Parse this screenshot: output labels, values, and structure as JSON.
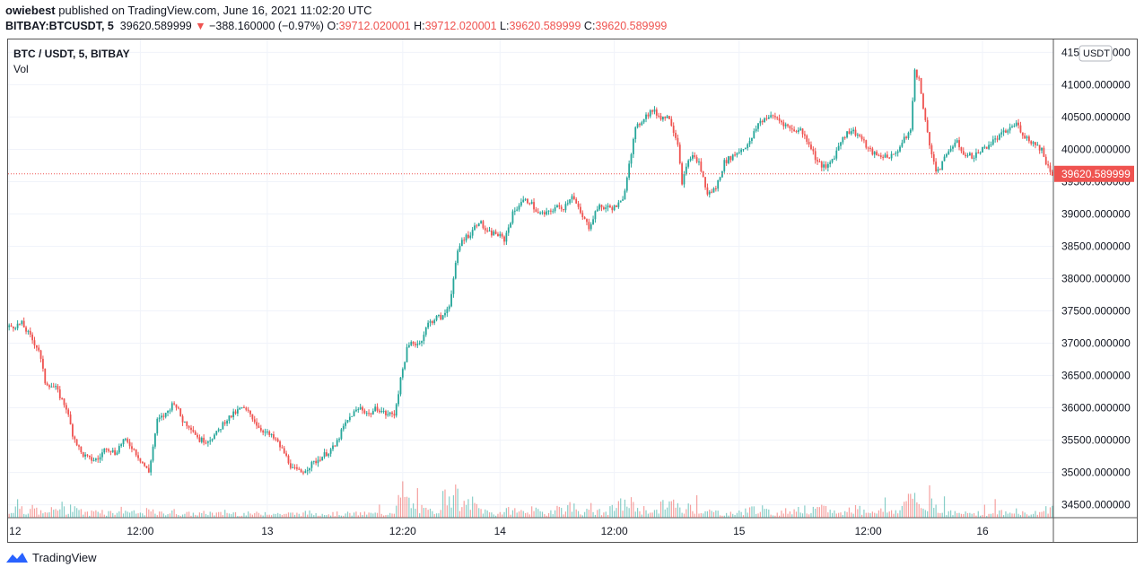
{
  "header": {
    "author": "owiebest",
    "published_text": " published on TradingView.com, June 16, 2021 11:02:20 UTC",
    "symbol": "BITBAY:BTCUSDT, 5",
    "last_price": "39620.589999",
    "change_arrow": "▼",
    "change_text": "−388.160000 (−0.97%)",
    "o_label": "O:",
    "o_value": "39712.020001",
    "h_label": "H:",
    "h_value": "39712.020001",
    "l_label": "L:",
    "l_value": "39620.589999",
    "c_label": "C:",
    "c_value": "39620.589999"
  },
  "legend": {
    "pair": "BTC / USDT, 5, BITBAY",
    "volume_label": "Vol"
  },
  "footer": {
    "brand": "TradingView"
  },
  "colors": {
    "up": "#26a69a",
    "down": "#ef5350",
    "grid": "#f0f3fa",
    "axis_text": "#131722",
    "price_tag": "#ef5350"
  },
  "chart_data": {
    "type": "candlestick",
    "currency_label": "USDT",
    "ylim": [
      34300,
      41700
    ],
    "y_ticks": [
      "41500.000000",
      "41000.000000",
      "40500.000000",
      "40000.000000",
      "39500.000000",
      "39000.000000",
      "38500.000000",
      "38000.000000",
      "37500.000000",
      "37000.000000",
      "36500.000000",
      "36000.000000",
      "35500.000000",
      "35000.000000",
      "34500.000000"
    ],
    "x_ticks": [
      "12",
      "12:00",
      "13",
      "12:20",
      "14",
      "12:00",
      "15",
      "12:00",
      "16"
    ],
    "current_price": 39620.589999,
    "current_price_label": "39620.589999",
    "price_path": [
      [
        0,
        37250
      ],
      [
        6,
        37300
      ],
      [
        10,
        37100
      ],
      [
        14,
        36900
      ],
      [
        17,
        36400
      ],
      [
        22,
        36300
      ],
      [
        27,
        36000
      ],
      [
        30,
        35600
      ],
      [
        34,
        35300
      ],
      [
        38,
        35200
      ],
      [
        42,
        35200
      ],
      [
        46,
        35400
      ],
      [
        50,
        35300
      ],
      [
        54,
        35500
      ],
      [
        58,
        35400
      ],
      [
        62,
        35200
      ],
      [
        66,
        35000
      ],
      [
        70,
        35800
      ],
      [
        74,
        35900
      ],
      [
        78,
        36100
      ],
      [
        82,
        35800
      ],
      [
        86,
        35700
      ],
      [
        90,
        35500
      ],
      [
        94,
        35500
      ],
      [
        98,
        35600
      ],
      [
        102,
        35800
      ],
      [
        106,
        35900
      ],
      [
        110,
        36000
      ],
      [
        114,
        35900
      ],
      [
        118,
        35700
      ],
      [
        122,
        35600
      ],
      [
        126,
        35500
      ],
      [
        130,
        35300
      ],
      [
        134,
        35050
      ],
      [
        138,
        35000
      ],
      [
        142,
        35100
      ],
      [
        146,
        35200
      ],
      [
        150,
        35300
      ],
      [
        154,
        35400
      ],
      [
        158,
        35700
      ],
      [
        162,
        35900
      ],
      [
        166,
        36000
      ],
      [
        170,
        35900
      ],
      [
        174,
        36000
      ],
      [
        178,
        35900
      ],
      [
        182,
        35900
      ],
      [
        186,
        36600
      ],
      [
        188,
        36900
      ],
      [
        190,
        37000
      ],
      [
        194,
        37000
      ],
      [
        198,
        37300
      ],
      [
        202,
        37400
      ],
      [
        205,
        37400
      ],
      [
        208,
        37600
      ],
      [
        212,
        38400
      ],
      [
        214,
        38600
      ],
      [
        218,
        38700
      ],
      [
        222,
        38900
      ],
      [
        226,
        38700
      ],
      [
        230,
        38700
      ],
      [
        234,
        38600
      ],
      [
        238,
        39000
      ],
      [
        242,
        39200
      ],
      [
        246,
        39200
      ],
      [
        250,
        39000
      ],
      [
        254,
        39000
      ],
      [
        258,
        39100
      ],
      [
        262,
        39100
      ],
      [
        266,
        39300
      ],
      [
        270,
        39000
      ],
      [
        274,
        38800
      ],
      [
        278,
        39100
      ],
      [
        282,
        39100
      ],
      [
        286,
        39100
      ],
      [
        290,
        39200
      ],
      [
        293,
        39800
      ],
      [
        296,
        40300
      ],
      [
        300,
        40500
      ],
      [
        304,
        40600
      ],
      [
        308,
        40500
      ],
      [
        312,
        40500
      ],
      [
        316,
        40100
      ],
      [
        318,
        39500
      ],
      [
        322,
        39900
      ],
      [
        326,
        39800
      ],
      [
        330,
        39300
      ],
      [
        334,
        39400
      ],
      [
        338,
        39800
      ],
      [
        342,
        39900
      ],
      [
        346,
        40000
      ],
      [
        350,
        40100
      ],
      [
        354,
        40400
      ],
      [
        358,
        40500
      ],
      [
        362,
        40500
      ],
      [
        366,
        40400
      ],
      [
        370,
        40300
      ],
      [
        374,
        40300
      ],
      [
        378,
        40100
      ],
      [
        382,
        39800
      ],
      [
        386,
        39700
      ],
      [
        390,
        39900
      ],
      [
        394,
        40200
      ],
      [
        398,
        40300
      ],
      [
        402,
        40200
      ],
      [
        406,
        40000
      ],
      [
        410,
        39900
      ],
      [
        414,
        39900
      ],
      [
        418,
        39900
      ],
      [
        422,
        40100
      ],
      [
        426,
        40300
      ],
      [
        428,
        41200
      ],
      [
        430,
        41100
      ],
      [
        432,
        40600
      ],
      [
        434,
        40300
      ],
      [
        436,
        39900
      ],
      [
        438,
        39700
      ],
      [
        440,
        39700
      ],
      [
        444,
        40000
      ],
      [
        448,
        40100
      ],
      [
        452,
        39900
      ],
      [
        456,
        39900
      ],
      [
        460,
        40000
      ],
      [
        464,
        40100
      ],
      [
        468,
        40200
      ],
      [
        472,
        40300
      ],
      [
        476,
        40400
      ],
      [
        480,
        40200
      ],
      [
        484,
        40100
      ],
      [
        488,
        40000
      ],
      [
        490,
        39800
      ],
      [
        493,
        39620
      ]
    ],
    "volume_path": [
      [
        0,
        40
      ],
      [
        4,
        160
      ],
      [
        8,
        60
      ],
      [
        12,
        90
      ],
      [
        16,
        40
      ],
      [
        20,
        70
      ],
      [
        24,
        120
      ],
      [
        28,
        60
      ],
      [
        30,
        150
      ],
      [
        34,
        60
      ],
      [
        38,
        40
      ],
      [
        42,
        90
      ],
      [
        46,
        50
      ],
      [
        50,
        60
      ],
      [
        54,
        80
      ],
      [
        58,
        50
      ],
      [
        62,
        40
      ],
      [
        66,
        70
      ],
      [
        70,
        40
      ],
      [
        74,
        50
      ],
      [
        78,
        60
      ],
      [
        82,
        40
      ],
      [
        86,
        40
      ],
      [
        90,
        40
      ],
      [
        94,
        50
      ],
      [
        98,
        40
      ],
      [
        102,
        40
      ],
      [
        106,
        50
      ],
      [
        110,
        40
      ],
      [
        114,
        40
      ],
      [
        118,
        40
      ],
      [
        122,
        60
      ],
      [
        126,
        40
      ],
      [
        130,
        40
      ],
      [
        134,
        40
      ],
      [
        138,
        40
      ],
      [
        142,
        50
      ],
      [
        146,
        40
      ],
      [
        150,
        40
      ],
      [
        154,
        40
      ],
      [
        158,
        40
      ],
      [
        162,
        40
      ],
      [
        166,
        40
      ],
      [
        170,
        40
      ],
      [
        174,
        40
      ],
      [
        178,
        40
      ],
      [
        182,
        80
      ],
      [
        186,
        250
      ],
      [
        190,
        120
      ],
      [
        194,
        90
      ],
      [
        198,
        60
      ],
      [
        202,
        80
      ],
      [
        206,
        220
      ],
      [
        210,
        280
      ],
      [
        214,
        100
      ],
      [
        218,
        160
      ],
      [
        222,
        90
      ],
      [
        226,
        60
      ],
      [
        230,
        40
      ],
      [
        234,
        60
      ],
      [
        238,
        80
      ],
      [
        242,
        60
      ],
      [
        246,
        80
      ],
      [
        250,
        60
      ],
      [
        254,
        40
      ],
      [
        258,
        110
      ],
      [
        262,
        80
      ],
      [
        266,
        120
      ],
      [
        270,
        60
      ],
      [
        274,
        60
      ],
      [
        278,
        60
      ],
      [
        282,
        50
      ],
      [
        286,
        100
      ],
      [
        290,
        140
      ],
      [
        294,
        140
      ],
      [
        298,
        80
      ],
      [
        302,
        80
      ],
      [
        306,
        60
      ],
      [
        310,
        150
      ],
      [
        314,
        140
      ],
      [
        318,
        60
      ],
      [
        322,
        120
      ],
      [
        326,
        80
      ],
      [
        330,
        60
      ],
      [
        334,
        60
      ],
      [
        338,
        40
      ],
      [
        342,
        40
      ],
      [
        346,
        60
      ],
      [
        350,
        80
      ],
      [
        354,
        100
      ],
      [
        358,
        60
      ],
      [
        362,
        40
      ],
      [
        366,
        60
      ],
      [
        370,
        80
      ],
      [
        374,
        100
      ],
      [
        378,
        60
      ],
      [
        382,
        80
      ],
      [
        386,
        90
      ],
      [
        390,
        60
      ],
      [
        394,
        40
      ],
      [
        398,
        100
      ],
      [
        402,
        80
      ],
      [
        406,
        60
      ],
      [
        410,
        80
      ],
      [
        414,
        60
      ],
      [
        418,
        70
      ],
      [
        422,
        90
      ],
      [
        426,
        290
      ],
      [
        428,
        160
      ],
      [
        432,
        90
      ],
      [
        436,
        160
      ],
      [
        440,
        80
      ],
      [
        444,
        60
      ],
      [
        448,
        40
      ],
      [
        452,
        40
      ],
      [
        456,
        60
      ],
      [
        460,
        40
      ],
      [
        464,
        40
      ],
      [
        468,
        60
      ],
      [
        472,
        40
      ],
      [
        476,
        80
      ],
      [
        480,
        40
      ],
      [
        484,
        40
      ],
      [
        488,
        60
      ],
      [
        492,
        110
      ]
    ],
    "time_ticks_positions": [
      0,
      62,
      122,
      186,
      232,
      286,
      345,
      406,
      460
    ]
  }
}
